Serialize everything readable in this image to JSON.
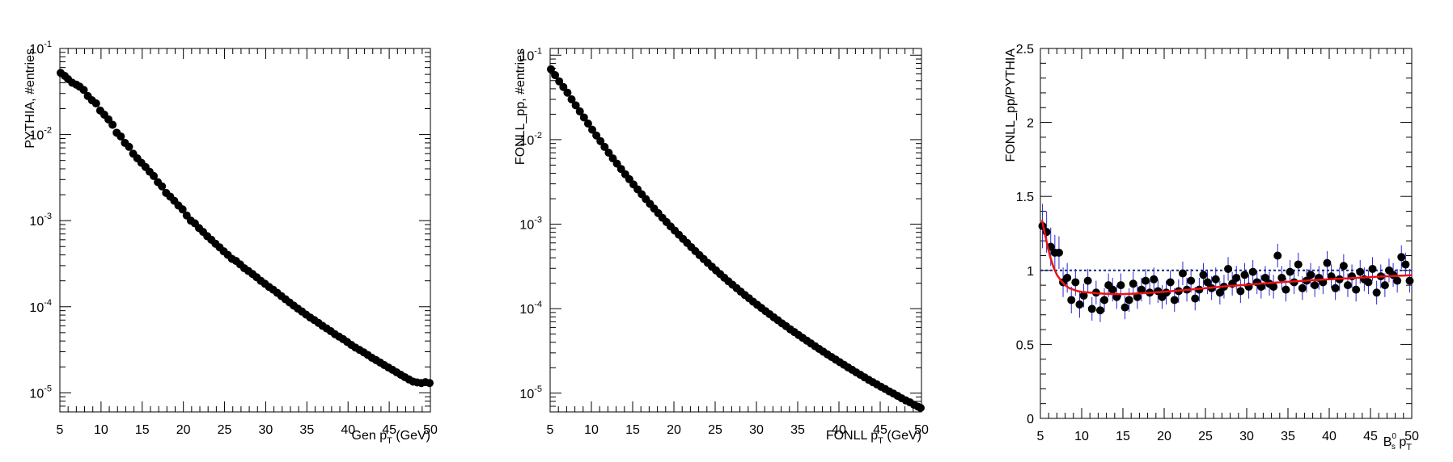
{
  "chart_data": [
    {
      "type": "scatter",
      "ylabel": "PYTHIA, #entries",
      "xlabel_prefix": "Gen p",
      "xlabel_sub": "T",
      "xlabel_suffix": " (GeV)",
      "xlim": [
        5,
        50
      ],
      "ylim": [
        6e-06,
        0.1
      ],
      "yscale": "log",
      "grid": false,
      "xticks": [
        "5",
        "10",
        "15",
        "20",
        "25",
        "30",
        "35",
        "40",
        "45",
        "50"
      ],
      "yticks": [
        {
          "label": "10",
          "exp": "-1",
          "v": 0.1
        },
        {
          "label": "10",
          "exp": "-2",
          "v": 0.01
        },
        {
          "label": "10",
          "exp": "-3",
          "v": 0.001
        },
        {
          "label": "10",
          "exp": "-4",
          "v": 0.0001
        },
        {
          "label": "10",
          "exp": "-5",
          "v": 1e-05
        }
      ],
      "series": [
        {
          "marker": "circle",
          "color": "#000000",
          "x": [
            5.1,
            5.6,
            6.0,
            6.5,
            7.0,
            7.4,
            7.9,
            8.4,
            8.9,
            9.4,
            9.9,
            10.4,
            10.9,
            11.4,
            11.9,
            12.4,
            12.9,
            13.4,
            13.9,
            14.4,
            14.9,
            15.4,
            15.9,
            16.4,
            16.9,
            17.4,
            17.9,
            18.4,
            18.9,
            19.4,
            19.9,
            20.4,
            20.9,
            21.4,
            21.9,
            22.4,
            22.9,
            23.4,
            23.9,
            24.4,
            24.9,
            25.4,
            25.9,
            26.4,
            26.9,
            27.4,
            27.9,
            28.4,
            28.9,
            29.4,
            29.9,
            30.4,
            30.9,
            31.4,
            31.9,
            32.4,
            32.9,
            33.4,
            33.9,
            34.4,
            34.9,
            35.4,
            35.9,
            36.4,
            36.9,
            37.4,
            37.9,
            38.4,
            38.9,
            39.4,
            39.9,
            40.4,
            40.9,
            41.4,
            41.9,
            42.4,
            42.9,
            43.4,
            43.9,
            44.4,
            44.9,
            45.4,
            45.9,
            46.4,
            46.9,
            47.4,
            47.9,
            48.4,
            48.9,
            49.4,
            49.9
          ],
          "y": [
            0.052,
            0.048,
            0.044,
            0.04,
            0.038,
            0.036,
            0.033,
            0.028,
            0.025,
            0.023,
            0.019,
            0.017,
            0.015,
            0.013,
            0.0105,
            0.0095,
            0.008,
            0.0072,
            0.006,
            0.0053,
            0.0047,
            0.0042,
            0.0037,
            0.0033,
            0.0028,
            0.0025,
            0.0021,
            0.0019,
            0.0017,
            0.0015,
            0.00135,
            0.00115,
            0.001,
            0.00093,
            0.00082,
            0.00074,
            0.00066,
            0.0006,
            0.00054,
            0.00049,
            0.00044,
            0.0004,
            0.00036,
            0.00034,
            0.00031,
            0.00028,
            0.00026,
            0.00024,
            0.00022,
            0.0002,
            0.000185,
            0.00017,
            0.000158,
            0.000145,
            0.000133,
            0.000122,
            0.000112,
            0.000103,
            9.5e-05,
            8.8e-05,
            8.1e-05,
            7.5e-05,
            7e-05,
            6.5e-05,
            6e-05,
            5.6e-05,
            5.2e-05,
            4.8e-05,
            4.5e-05,
            4.2e-05,
            3.9e-05,
            3.6e-05,
            3.35e-05,
            3.15e-05,
            2.95e-05,
            2.75e-05,
            2.55e-05,
            2.4e-05,
            2.25e-05,
            2.1e-05,
            1.97e-05,
            1.85e-05,
            1.73e-05,
            1.62e-05,
            1.52e-05,
            1.43e-05,
            1.35e-05,
            1.32e-05,
            1.3e-05,
            1.33e-05,
            1.3e-05
          ]
        }
      ]
    },
    {
      "type": "scatter",
      "ylabel": "FONLL_pp, #entries",
      "xlabel_prefix": "FONLL p",
      "xlabel_sub": "T",
      "xlabel_suffix": " (GeV)",
      "xlim": [
        5,
        50
      ],
      "ylim": [
        6e-06,
        0.12
      ],
      "yscale": "log",
      "grid": false,
      "xticks": [
        "5",
        "10",
        "15",
        "20",
        "25",
        "30",
        "35",
        "40",
        "45",
        "50"
      ],
      "yticks": [
        {
          "label": "10",
          "exp": "-1",
          "v": 0.1
        },
        {
          "label": "10",
          "exp": "-2",
          "v": 0.01
        },
        {
          "label": "10",
          "exp": "-3",
          "v": 0.001
        },
        {
          "label": "10",
          "exp": "-4",
          "v": 0.0001
        },
        {
          "label": "10",
          "exp": "-5",
          "v": 1e-05
        }
      ],
      "series": [
        {
          "marker": "circle",
          "color": "#000000",
          "x": [
            5.1,
            5.6,
            6.1,
            6.6,
            7.1,
            7.6,
            8.1,
            8.6,
            9.1,
            9.6,
            10.1,
            10.6,
            11.1,
            11.6,
            12.1,
            12.6,
            13.1,
            13.6,
            14.1,
            14.6,
            15.1,
            15.6,
            16.1,
            16.6,
            17.1,
            17.6,
            18.1,
            18.6,
            19.1,
            19.6,
            20.1,
            20.6,
            21.1,
            21.6,
            22.1,
            22.6,
            23.1,
            23.6,
            24.1,
            24.6,
            25.1,
            25.6,
            26.1,
            26.6,
            27.1,
            27.6,
            28.1,
            28.6,
            29.1,
            29.6,
            30.1,
            30.6,
            31.1,
            31.6,
            32.1,
            32.6,
            33.1,
            33.6,
            34.1,
            34.6,
            35.1,
            35.6,
            36.1,
            36.6,
            37.1,
            37.6,
            38.1,
            38.6,
            39.1,
            39.6,
            40.1,
            40.6,
            41.1,
            41.6,
            42.1,
            42.6,
            43.1,
            43.6,
            44.1,
            44.6,
            45.1,
            45.6,
            46.1,
            46.6,
            47.1,
            47.6,
            48.1,
            48.6,
            49.1,
            49.6,
            49.9
          ],
          "y": [
            0.068,
            0.058,
            0.049,
            0.042,
            0.036,
            0.03,
            0.0255,
            0.0216,
            0.0183,
            0.0155,
            0.0131,
            0.0112,
            0.0096,
            0.0082,
            0.007,
            0.006,
            0.0052,
            0.0045,
            0.0039,
            0.0034,
            0.00295,
            0.00258,
            0.00226,
            0.00198,
            0.00174,
            0.00153,
            0.00135,
            0.00119,
            0.00106,
            0.00094,
            0.00084,
            0.00075,
            0.00067,
            0.0006,
            0.000535,
            0.00048,
            0.00043,
            0.000387,
            0.000348,
            0.000314,
            0.000284,
            0.000257,
            0.000233,
            0.000211,
            0.000192,
            0.000175,
            0.000159,
            0.000145,
            0.000133,
            0.000121,
            0.000111,
            0.000102,
            9.35e-05,
            8.6e-05,
            7.9e-05,
            7.3e-05,
            6.7e-05,
            6.2e-05,
            5.7e-05,
            5.28e-05,
            4.88e-05,
            4.52e-05,
            4.19e-05,
            3.88e-05,
            3.6e-05,
            3.34e-05,
            3.1e-05,
            2.88e-05,
            2.68e-05,
            2.5e-05,
            2.33e-05,
            2.17e-05,
            2.02e-05,
            1.89e-05,
            1.76e-05,
            1.65e-05,
            1.54e-05,
            1.44e-05,
            1.35e-05,
            1.27e-05,
            1.19e-05,
            1.12e-05,
            1.05e-05,
            9.9e-06,
            9.3e-06,
            8.7e-06,
            8.2e-06,
            7.8e-06,
            7.3e-06,
            6.9e-06,
            6.7e-06
          ]
        }
      ]
    },
    {
      "type": "scatter",
      "ylabel": "FONLL_pp/PYTHIA",
      "xlabel_main": "B",
      "xlabel_sup": "0",
      "xlabel_sub": "s",
      "xlabel_p": "p",
      "xlabel_psub": "T",
      "xlim": [
        5,
        50
      ],
      "ylim": [
        0,
        2.5
      ],
      "yscale": "linear",
      "grid": false,
      "xticks": [
        "5",
        "10",
        "15",
        "20",
        "25",
        "30",
        "35",
        "40",
        "45",
        "50"
      ],
      "yticks": [
        {
          "label": "0",
          "v": 0
        },
        {
          "label": "0.5",
          "v": 0.5
        },
        {
          "label": "1",
          "v": 1
        },
        {
          "label": "1.5",
          "v": 1.5
        },
        {
          "label": "2",
          "v": 2
        },
        {
          "label": "2.5",
          "v": 2.5
        }
      ],
      "reference_line": {
        "y": 1,
        "style": "dashed",
        "color": "#1a237e"
      },
      "errorbar_color": "#2a2ad4",
      "fit_color": "#ee1111",
      "series": [
        {
          "marker": "circle",
          "color": "#000000",
          "x": [
            5.25,
            5.75,
            6.25,
            6.75,
            7.25,
            7.75,
            8.25,
            8.75,
            9.25,
            9.75,
            10.25,
            10.75,
            11.25,
            11.75,
            12.25,
            12.75,
            13.25,
            13.75,
            14.25,
            14.75,
            15.25,
            15.75,
            16.25,
            16.75,
            17.25,
            17.75,
            18.25,
            18.75,
            19.25,
            19.75,
            20.25,
            20.75,
            21.25,
            21.75,
            22.25,
            22.75,
            23.25,
            23.75,
            24.25,
            24.75,
            25.25,
            25.75,
            26.25,
            26.75,
            27.25,
            27.75,
            28.25,
            28.75,
            29.25,
            29.75,
            30.25,
            30.75,
            31.25,
            31.75,
            32.25,
            32.75,
            33.25,
            33.75,
            34.25,
            34.75,
            35.25,
            35.75,
            36.25,
            36.75,
            37.25,
            37.75,
            38.25,
            38.75,
            39.25,
            39.75,
            40.25,
            40.75,
            41.25,
            41.75,
            42.25,
            42.75,
            43.25,
            43.75,
            44.25,
            44.75,
            45.25,
            45.75,
            46.25,
            46.75,
            47.25,
            47.75,
            48.25,
            48.75,
            49.25,
            49.75
          ],
          "y": [
            1.3,
            1.26,
            1.16,
            1.12,
            1.12,
            0.92,
            0.95,
            0.8,
            0.92,
            0.77,
            0.83,
            0.93,
            0.74,
            0.85,
            0.73,
            0.8,
            0.9,
            0.87,
            0.82,
            0.9,
            0.75,
            0.8,
            0.91,
            0.82,
            0.87,
            0.93,
            0.85,
            0.94,
            0.86,
            0.82,
            0.85,
            0.92,
            0.8,
            0.86,
            0.98,
            0.87,
            0.93,
            0.81,
            0.87,
            0.97,
            0.92,
            0.88,
            0.94,
            0.85,
            0.89,
            1.01,
            0.91,
            0.95,
            0.86,
            0.97,
            0.89,
            0.99,
            0.92,
            0.89,
            0.95,
            0.91,
            0.89,
            1.1,
            0.95,
            0.87,
            0.99,
            0.92,
            1.04,
            0.88,
            0.93,
            0.97,
            0.9,
            0.95,
            0.92,
            1.05,
            0.96,
            0.88,
            0.94,
            1.03,
            0.9,
            0.96,
            0.87,
            0.99,
            0.94,
            0.92,
            1.01,
            0.85,
            0.96,
            0.9,
            1.0,
            0.97,
            0.93,
            1.09,
            1.04,
            0.93
          ],
          "yerr": [
            0.15,
            0.14,
            0.13,
            0.12,
            0.11,
            0.1,
            0.1,
            0.09,
            0.09,
            0.09,
            0.08,
            0.08,
            0.08,
            0.08,
            0.08,
            0.08,
            0.08,
            0.08,
            0.08,
            0.08,
            0.08,
            0.08,
            0.08,
            0.08,
            0.08,
            0.08,
            0.08,
            0.08,
            0.08,
            0.08,
            0.08,
            0.08,
            0.08,
            0.08,
            0.08,
            0.08,
            0.08,
            0.08,
            0.08,
            0.08,
            0.08,
            0.08,
            0.08,
            0.08,
            0.08,
            0.08,
            0.08,
            0.08,
            0.08,
            0.08,
            0.08,
            0.08,
            0.08,
            0.08,
            0.08,
            0.08,
            0.08,
            0.08,
            0.08,
            0.08,
            0.08,
            0.08,
            0.08,
            0.08,
            0.08,
            0.08,
            0.08,
            0.08,
            0.08,
            0.08,
            0.08,
            0.08,
            0.08,
            0.08,
            0.08,
            0.08,
            0.08,
            0.08,
            0.08,
            0.08,
            0.08,
            0.08,
            0.08,
            0.08,
            0.08,
            0.08,
            0.08,
            0.08,
            0.08,
            0.08
          ]
        }
      ],
      "fit": {
        "x": [
          5.2,
          5.5,
          5.8,
          6.2,
          6.6,
          7.0,
          7.5,
          8.0,
          8.5,
          9.0,
          9.5,
          10.0,
          11.0,
          12.0,
          13.0,
          14.0,
          15.0,
          16.0,
          18.0,
          20.0,
          22.0,
          24.0,
          26.0,
          28.0,
          30.0,
          32.0,
          34.0,
          36.0,
          38.0,
          40.0,
          42.0,
          44.0,
          46.0,
          48.0,
          50.0
        ],
        "y": [
          1.34,
          1.26,
          1.18,
          1.09,
          1.02,
          0.97,
          0.93,
          0.9,
          0.88,
          0.87,
          0.86,
          0.855,
          0.85,
          0.845,
          0.842,
          0.84,
          0.84,
          0.842,
          0.848,
          0.856,
          0.865,
          0.875,
          0.885,
          0.895,
          0.903,
          0.912,
          0.92,
          0.927,
          0.934,
          0.94,
          0.946,
          0.952,
          0.958,
          0.963,
          0.968
        ]
      }
    }
  ]
}
